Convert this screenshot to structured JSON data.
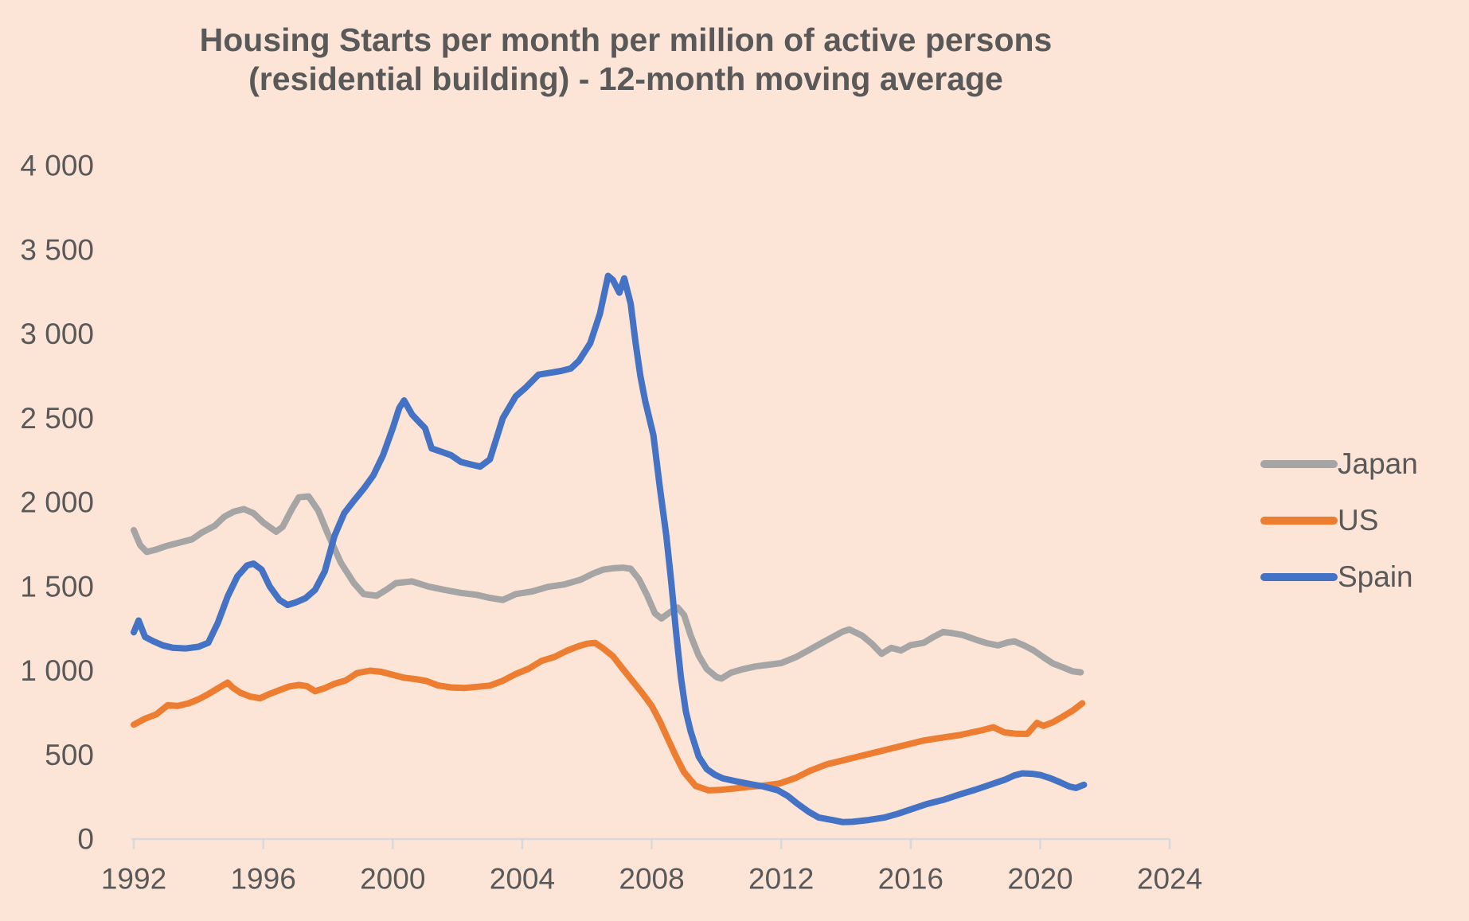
{
  "title": {
    "line1": "Housing Starts per month per million of active persons",
    "line2": "(residential building) - 12-month moving average"
  },
  "colors": {
    "background": "#fce4d6",
    "text": "#595959",
    "axis_line": "#d9d9d9",
    "japan": "#a5a5a5",
    "us": "#ed7d31",
    "spain": "#4472c4"
  },
  "legend": {
    "items": [
      {
        "label": "Japan",
        "color_key": "japan"
      },
      {
        "label": "US",
        "color_key": "us"
      },
      {
        "label": "Spain",
        "color_key": "spain"
      }
    ]
  },
  "chart_data": {
    "type": "line",
    "title": "Housing Starts per month per million of active persons (residential building) - 12-month moving average",
    "xlabel": "",
    "ylabel": "",
    "grid": false,
    "legend_position": "right",
    "x_axis": {
      "min": 1992,
      "max": 2025,
      "tick_step": 4,
      "ticks": [
        1992,
        1996,
        2000,
        2004,
        2008,
        2012,
        2016,
        2020,
        2024
      ],
      "tick_labels": [
        "1992",
        "1996",
        "2000",
        "2004",
        "2008",
        "2012",
        "2016",
        "2020",
        "2024"
      ]
    },
    "y_axis": {
      "min": 0,
      "max": 4000,
      "tick_step": 500,
      "ticks": [
        0,
        500,
        1000,
        1500,
        2000,
        2500,
        3000,
        3500,
        4000
      ],
      "tick_labels": [
        "0",
        "500",
        "1 000",
        "1 500",
        "2 000",
        "2 500",
        "3 000",
        "3 500",
        "4 000"
      ]
    },
    "series": [
      {
        "name": "Japan",
        "color_key": "japan",
        "points": [
          [
            1992.0,
            1835
          ],
          [
            1992.2,
            1745
          ],
          [
            1992.4,
            1705
          ],
          [
            1992.7,
            1720
          ],
          [
            1993.0,
            1740
          ],
          [
            1993.4,
            1760
          ],
          [
            1993.8,
            1780
          ],
          [
            1994.1,
            1820
          ],
          [
            1994.5,
            1860
          ],
          [
            1994.8,
            1915
          ],
          [
            1995.1,
            1945
          ],
          [
            1995.4,
            1960
          ],
          [
            1995.7,
            1935
          ],
          [
            1996.0,
            1880
          ],
          [
            1996.4,
            1825
          ],
          [
            1996.6,
            1855
          ],
          [
            1996.9,
            1965
          ],
          [
            1997.1,
            2030
          ],
          [
            1997.4,
            2035
          ],
          [
            1997.7,
            1950
          ],
          [
            1998.0,
            1810
          ],
          [
            1998.4,
            1640
          ],
          [
            1998.8,
            1520
          ],
          [
            1999.1,
            1455
          ],
          [
            1999.5,
            1445
          ],
          [
            1999.8,
            1480
          ],
          [
            2000.1,
            1520
          ],
          [
            2000.6,
            1530
          ],
          [
            2001.1,
            1500
          ],
          [
            2001.6,
            1480
          ],
          [
            2002.1,
            1462
          ],
          [
            2002.6,
            1450
          ],
          [
            2003.0,
            1432
          ],
          [
            2003.4,
            1420
          ],
          [
            2003.8,
            1455
          ],
          [
            2004.3,
            1470
          ],
          [
            2004.8,
            1498
          ],
          [
            2005.3,
            1512
          ],
          [
            2005.8,
            1540
          ],
          [
            2006.2,
            1578
          ],
          [
            2006.5,
            1600
          ],
          [
            2006.8,
            1608
          ],
          [
            2007.1,
            1612
          ],
          [
            2007.35,
            1605
          ],
          [
            2007.6,
            1545
          ],
          [
            2007.85,
            1450
          ],
          [
            2008.1,
            1340
          ],
          [
            2008.3,
            1310
          ],
          [
            2008.55,
            1345
          ],
          [
            2008.8,
            1375
          ],
          [
            2009.0,
            1330
          ],
          [
            2009.2,
            1210
          ],
          [
            2009.45,
            1090
          ],
          [
            2009.7,
            1010
          ],
          [
            2010.0,
            962
          ],
          [
            2010.15,
            953
          ],
          [
            2010.45,
            988
          ],
          [
            2010.8,
            1008
          ],
          [
            2011.2,
            1025
          ],
          [
            2011.6,
            1035
          ],
          [
            2012.0,
            1045
          ],
          [
            2012.45,
            1080
          ],
          [
            2012.9,
            1127
          ],
          [
            2013.4,
            1180
          ],
          [
            2013.9,
            1232
          ],
          [
            2014.1,
            1245
          ],
          [
            2014.5,
            1208
          ],
          [
            2014.8,
            1160
          ],
          [
            2015.1,
            1100
          ],
          [
            2015.4,
            1135
          ],
          [
            2015.7,
            1120
          ],
          [
            2016.0,
            1152
          ],
          [
            2016.4,
            1165
          ],
          [
            2016.7,
            1200
          ],
          [
            2017.0,
            1230
          ],
          [
            2017.3,
            1222
          ],
          [
            2017.6,
            1212
          ],
          [
            2018.0,
            1185
          ],
          [
            2018.35,
            1163
          ],
          [
            2018.7,
            1150
          ],
          [
            2019.0,
            1168
          ],
          [
            2019.2,
            1174
          ],
          [
            2019.5,
            1150
          ],
          [
            2019.8,
            1120
          ],
          [
            2020.1,
            1080
          ],
          [
            2020.4,
            1042
          ],
          [
            2020.7,
            1020
          ],
          [
            2021.0,
            996
          ],
          [
            2021.25,
            990
          ]
        ]
      },
      {
        "name": "US",
        "color_key": "us",
        "points": [
          [
            1992.0,
            679
          ],
          [
            1992.35,
            715
          ],
          [
            1992.7,
            741
          ],
          [
            1993.05,
            795
          ],
          [
            1993.35,
            790
          ],
          [
            1993.7,
            806
          ],
          [
            1994.0,
            830
          ],
          [
            1994.3,
            860
          ],
          [
            1994.6,
            895
          ],
          [
            1994.9,
            929
          ],
          [
            1995.05,
            900
          ],
          [
            1995.3,
            868
          ],
          [
            1995.6,
            846
          ],
          [
            1995.9,
            836
          ],
          [
            1996.2,
            862
          ],
          [
            1996.5,
            884
          ],
          [
            1996.8,
            906
          ],
          [
            1997.1,
            915
          ],
          [
            1997.35,
            908
          ],
          [
            1997.6,
            878
          ],
          [
            1997.9,
            896
          ],
          [
            1998.2,
            922
          ],
          [
            1998.55,
            942
          ],
          [
            1998.9,
            986
          ],
          [
            1999.3,
            1000
          ],
          [
            1999.65,
            993
          ],
          [
            2000.0,
            975
          ],
          [
            2000.35,
            958
          ],
          [
            2000.7,
            950
          ],
          [
            2001.05,
            938
          ],
          [
            2001.4,
            912
          ],
          [
            2001.8,
            900
          ],
          [
            2002.2,
            897
          ],
          [
            2002.6,
            904
          ],
          [
            2003.0,
            911
          ],
          [
            2003.4,
            940
          ],
          [
            2003.8,
            980
          ],
          [
            2004.2,
            1012
          ],
          [
            2004.6,
            1058
          ],
          [
            2005.0,
            1082
          ],
          [
            2005.4,
            1120
          ],
          [
            2005.75,
            1146
          ],
          [
            2006.0,
            1160
          ],
          [
            2006.25,
            1165
          ],
          [
            2006.5,
            1132
          ],
          [
            2006.8,
            1086
          ],
          [
            2007.1,
            1012
          ],
          [
            2007.4,
            940
          ],
          [
            2007.7,
            868
          ],
          [
            2008.0,
            790
          ],
          [
            2008.25,
            700
          ],
          [
            2008.5,
            594
          ],
          [
            2008.75,
            490
          ],
          [
            2009.0,
            396
          ],
          [
            2009.35,
            316
          ],
          [
            2009.75,
            289
          ],
          [
            2010.15,
            292
          ],
          [
            2010.65,
            302
          ],
          [
            2011.05,
            311
          ],
          [
            2011.45,
            317
          ],
          [
            2011.95,
            330
          ],
          [
            2012.45,
            363
          ],
          [
            2012.9,
            406
          ],
          [
            2013.4,
            443
          ],
          [
            2013.9,
            467
          ],
          [
            2014.4,
            491
          ],
          [
            2014.9,
            514
          ],
          [
            2015.4,
            538
          ],
          [
            2015.9,
            561
          ],
          [
            2016.4,
            585
          ],
          [
            2016.9,
            600
          ],
          [
            2017.5,
            617
          ],
          [
            2018.2,
            646
          ],
          [
            2018.55,
            664
          ],
          [
            2018.9,
            633
          ],
          [
            2019.25,
            625
          ],
          [
            2019.6,
            624
          ],
          [
            2019.9,
            690
          ],
          [
            2020.1,
            672
          ],
          [
            2020.4,
            694
          ],
          [
            2020.7,
            727
          ],
          [
            2021.0,
            762
          ],
          [
            2021.3,
            806
          ]
        ]
      },
      {
        "name": "Spain",
        "color_key": "spain",
        "points": [
          [
            1992.0,
            1228
          ],
          [
            1992.15,
            1298
          ],
          [
            1992.35,
            1200
          ],
          [
            1992.6,
            1175
          ],
          [
            1992.9,
            1150
          ],
          [
            1993.2,
            1136
          ],
          [
            1993.6,
            1132
          ],
          [
            1994.0,
            1142
          ],
          [
            1994.3,
            1165
          ],
          [
            1994.6,
            1285
          ],
          [
            1994.9,
            1440
          ],
          [
            1995.2,
            1560
          ],
          [
            1995.5,
            1625
          ],
          [
            1995.7,
            1636
          ],
          [
            1995.95,
            1600
          ],
          [
            1996.2,
            1500
          ],
          [
            1996.5,
            1420
          ],
          [
            1996.75,
            1390
          ],
          [
            1997.0,
            1405
          ],
          [
            1997.3,
            1430
          ],
          [
            1997.6,
            1480
          ],
          [
            1997.9,
            1590
          ],
          [
            1998.2,
            1800
          ],
          [
            1998.5,
            1935
          ],
          [
            1998.8,
            2010
          ],
          [
            1999.1,
            2080
          ],
          [
            1999.4,
            2160
          ],
          [
            1999.7,
            2280
          ],
          [
            2000.0,
            2440
          ],
          [
            2000.2,
            2560
          ],
          [
            2000.35,
            2605
          ],
          [
            2000.6,
            2520
          ],
          [
            2000.85,
            2470
          ],
          [
            2001.0,
            2440
          ],
          [
            2001.2,
            2320
          ],
          [
            2001.5,
            2300
          ],
          [
            2001.8,
            2280
          ],
          [
            2002.1,
            2240
          ],
          [
            2002.4,
            2225
          ],
          [
            2002.7,
            2212
          ],
          [
            2003.0,
            2255
          ],
          [
            2003.4,
            2500
          ],
          [
            2003.8,
            2630
          ],
          [
            2004.1,
            2680
          ],
          [
            2004.5,
            2758
          ],
          [
            2004.9,
            2770
          ],
          [
            2005.2,
            2780
          ],
          [
            2005.5,
            2795
          ],
          [
            2005.75,
            2840
          ],
          [
            2006.1,
            2945
          ],
          [
            2006.4,
            3120
          ],
          [
            2006.65,
            3345
          ],
          [
            2006.8,
            3320
          ],
          [
            2007.0,
            3245
          ],
          [
            2007.15,
            3330
          ],
          [
            2007.35,
            3180
          ],
          [
            2007.5,
            2950
          ],
          [
            2007.65,
            2750
          ],
          [
            2007.8,
            2600
          ],
          [
            2008.05,
            2400
          ],
          [
            2008.25,
            2090
          ],
          [
            2008.45,
            1800
          ],
          [
            2008.6,
            1530
          ],
          [
            2008.75,
            1230
          ],
          [
            2008.9,
            960
          ],
          [
            2009.05,
            760
          ],
          [
            2009.2,
            640
          ],
          [
            2009.45,
            490
          ],
          [
            2009.7,
            415
          ],
          [
            2009.95,
            382
          ],
          [
            2010.2,
            360
          ],
          [
            2010.65,
            341
          ],
          [
            2011.05,
            326
          ],
          [
            2011.45,
            312
          ],
          [
            2011.9,
            289
          ],
          [
            2012.2,
            256
          ],
          [
            2012.5,
            210
          ],
          [
            2012.85,
            161
          ],
          [
            2013.15,
            128
          ],
          [
            2013.6,
            112
          ],
          [
            2013.9,
            100
          ],
          [
            2014.2,
            102
          ],
          [
            2014.7,
            113
          ],
          [
            2015.2,
            128
          ],
          [
            2015.6,
            150
          ],
          [
            2016.0,
            176
          ],
          [
            2016.5,
            208
          ],
          [
            2017.0,
            232
          ],
          [
            2017.5,
            264
          ],
          [
            2018.0,
            293
          ],
          [
            2018.5,
            326
          ],
          [
            2018.9,
            352
          ],
          [
            2019.2,
            378
          ],
          [
            2019.45,
            390
          ],
          [
            2019.75,
            387
          ],
          [
            2020.0,
            380
          ],
          [
            2020.3,
            362
          ],
          [
            2020.6,
            338
          ],
          [
            2020.9,
            312
          ],
          [
            2021.1,
            303
          ],
          [
            2021.35,
            322
          ]
        ]
      }
    ]
  }
}
